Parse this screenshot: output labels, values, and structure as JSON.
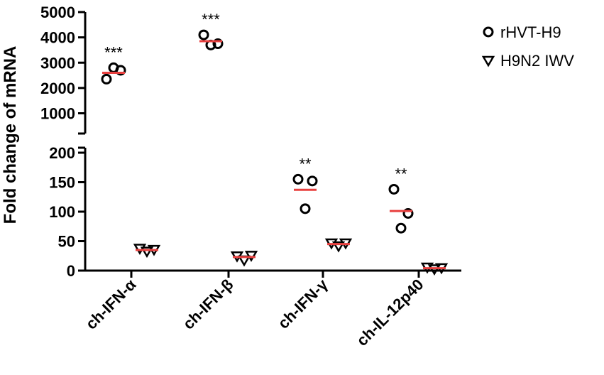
{
  "chart_data": {
    "type": "dot-plot",
    "y_label": "Fold change of mRNA",
    "categories": [
      "ch-IFN-α",
      "ch-IFN-β",
      "ch-IFN-γ",
      "ch-IL-12p40"
    ],
    "significance": [
      "***",
      "***",
      "**",
      "**"
    ],
    "segments": [
      {
        "ylim": [
          200,
          5000
        ],
        "yticks": [
          1000,
          2000,
          3000,
          4000,
          5000
        ]
      },
      {
        "ylim": [
          0,
          200
        ],
        "yticks": [
          0,
          50,
          100,
          150,
          200
        ]
      }
    ],
    "mean_color": "#e8403f",
    "series": [
      {
        "name": "rHVT-H9",
        "marker": "circle",
        "color": "#000000",
        "values": [
          [
            2350,
            2800,
            2700
          ],
          [
            4100,
            3700,
            3750
          ],
          [
            155,
            105,
            152
          ],
          [
            138,
            72,
            97
          ]
        ],
        "means": [
          2600,
          3850,
          137,
          101
        ]
      },
      {
        "name": "H9N2 IWV",
        "marker": "triangle",
        "color": "#000000",
        "values": [
          [
            38,
            33,
            36
          ],
          [
            25,
            18,
            26
          ],
          [
            47,
            42,
            47
          ],
          [
            6,
            3,
            5
          ]
        ],
        "means": [
          35,
          23,
          45,
          4
        ]
      }
    ]
  }
}
